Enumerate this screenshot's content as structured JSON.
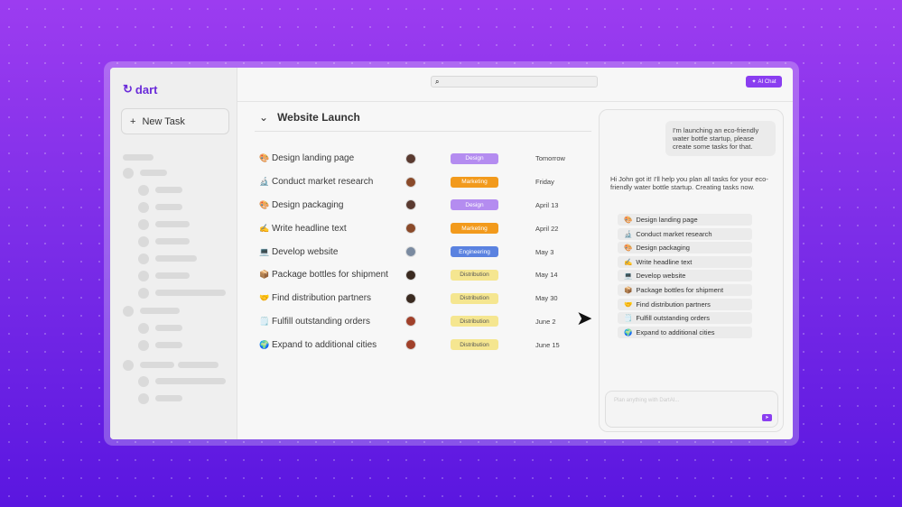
{
  "app": {
    "logo": "dart",
    "new_task": "New Task",
    "search_placeholder": "",
    "ai_chat": "AI Chat"
  },
  "project": {
    "title": "Website Launch"
  },
  "tasks": [
    {
      "emoji": "🎨",
      "title": "Design landing page",
      "tag": "Design",
      "date": "Tomorrow"
    },
    {
      "emoji": "🔬",
      "title": "Conduct market research",
      "tag": "Marketing",
      "date": "Friday"
    },
    {
      "emoji": "🎨",
      "title": "Design packaging",
      "tag": "Design",
      "date": "April 13"
    },
    {
      "emoji": "✍️",
      "title": "Write headline text",
      "tag": "Marketing",
      "date": "April 22"
    },
    {
      "emoji": "💻",
      "title": "Develop website",
      "tag": "Engineering",
      "date": "May 3"
    },
    {
      "emoji": "📦",
      "title": "Package bottles for shipment",
      "tag": "Distribution",
      "date": "May 14"
    },
    {
      "emoji": "🤝",
      "title": "Find distribution partners",
      "tag": "Distribution",
      "date": "May 30"
    },
    {
      "emoji": "🗒️",
      "title": "Fulfill outstanding orders",
      "tag": "Distribution",
      "date": "June 2"
    },
    {
      "emoji": "🌍",
      "title": "Expand to additional cities",
      "tag": "Distribution",
      "date": "June 15"
    }
  ],
  "tag_colors": {
    "Design": "#b48cf0",
    "Marketing": "#f29a1c",
    "Engineering": "#5a82e0",
    "Distribution": "#f5e690"
  },
  "chat": {
    "user_message": "I'm launching an eco-friendly water bottle startup, please create some tasks for that.",
    "ai_message": "Hi John got it! I'll help you plan all tasks for your eco-friendly water bottle startup. Creating tasks now.",
    "input_placeholder": "Plan anything with DartAI..."
  }
}
